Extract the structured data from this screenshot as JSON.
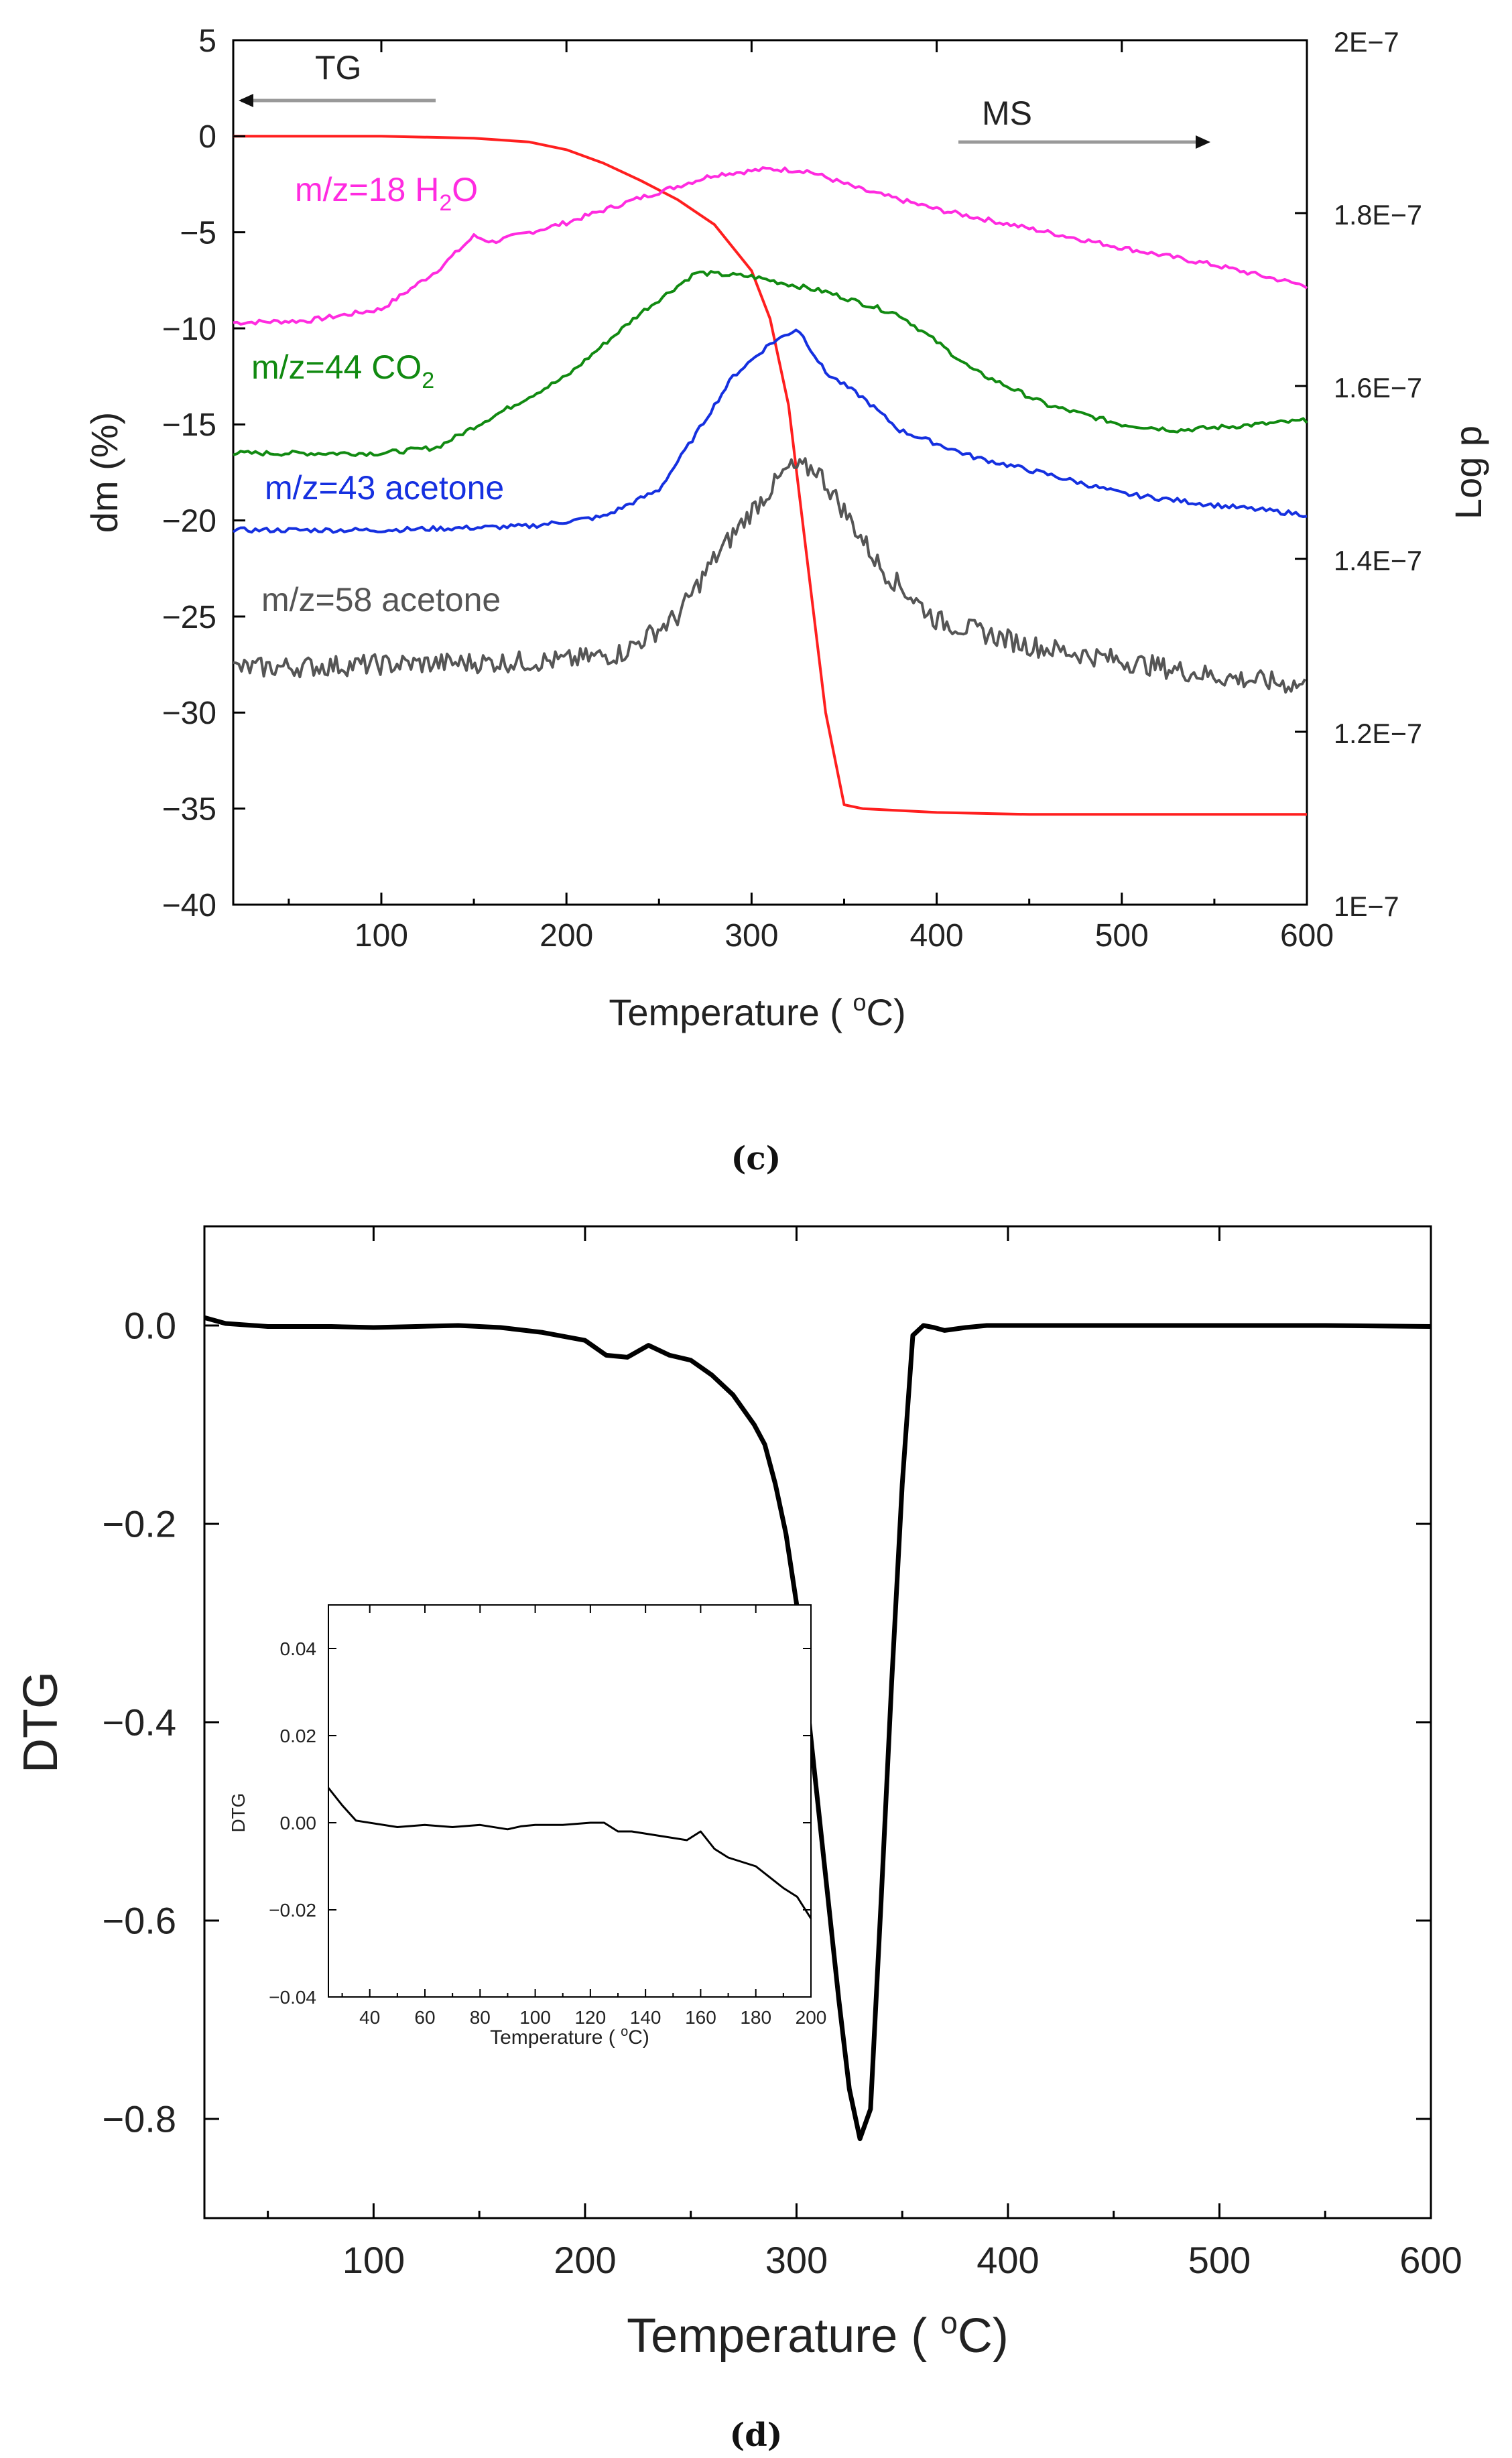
{
  "chart_data": [
    {
      "panel": "c",
      "type": "line",
      "xlabel": "Temperature ( ",
      "xlabel_sup": "o",
      "xlabel_end": "C)",
      "ylabel_left": "dm (%)",
      "ylabel_right": "Log p",
      "xlim": [
        20,
        600
      ],
      "ylim_left": [
        -40,
        5
      ],
      "ylim_right_labels": [
        "2E−7",
        "1.8E−7",
        "1.6E−7",
        "1.4E−7",
        "1.2E−7",
        "1E−7"
      ],
      "x_ticks": [
        "100",
        "200",
        "300",
        "400",
        "500",
        "600"
      ],
      "y_ticks_left": [
        "5",
        "0",
        "−5",
        "−10",
        "−15",
        "−20",
        "−25",
        "−30",
        "−35",
        "−40"
      ],
      "annotations": {
        "tg": "TG",
        "ms": "MS"
      },
      "series": [
        {
          "name": "TG",
          "color": "#ff1f1f",
          "x": [
            20,
            100,
            150,
            180,
            200,
            220,
            240,
            260,
            280,
            300,
            310,
            320,
            330,
            340,
            350,
            360,
            400,
            450,
            500,
            550,
            600
          ],
          "y": [
            0,
            0,
            -0.1,
            -0.3,
            -0.7,
            -1.4,
            -2.3,
            -3.3,
            -4.6,
            -7,
            -9.5,
            -14,
            -22,
            -30,
            -34.8,
            -35,
            -35.2,
            -35.3,
            -35.3,
            -35.3,
            -35.3
          ]
        },
        {
          "name": "m/z=18 H2O",
          "label_main": "m/z=18 H",
          "label_sub": "2",
          "label_end": "O",
          "color": "#ff2be0",
          "x": [
            20,
            60,
            100,
            130,
            150,
            160,
            180,
            200,
            240,
            280,
            310,
            330,
            360,
            400,
            450,
            500,
            550,
            600
          ],
          "y": [
            -9.7,
            -9.6,
            -9,
            -7,
            -5.2,
            -5.5,
            -5,
            -4.5,
            -3.2,
            -2,
            -1.7,
            -1.8,
            -2.8,
            -3.8,
            -4.8,
            -5.8,
            -6.7,
            -7.8
          ]
        },
        {
          "name": "m/z=44 CO2",
          "label_main": "m/z=44 CO",
          "label_sub": "2",
          "label_end": "",
          "color": "#118a11",
          "x": [
            20,
            100,
            130,
            160,
            200,
            240,
            270,
            300,
            340,
            380,
            400,
            420,
            460,
            500,
            530,
            560,
            600
          ],
          "y": [
            -16.5,
            -16.5,
            -16.2,
            -14.6,
            -12.5,
            -9.2,
            -7.1,
            -7.3,
            -8.1,
            -9.3,
            -10.7,
            -12.2,
            -14,
            -15,
            -15.3,
            -15.1,
            -14.8
          ]
        },
        {
          "name": "m/z=43 acetone",
          "label_main": "m/z=43 acetone",
          "label_sub": "",
          "label_end": "",
          "color": "#1530e0",
          "x": [
            20,
            100,
            180,
            220,
            250,
            270,
            290,
            310,
            325,
            340,
            360,
            380,
            420,
            460,
            500,
            550,
            600
          ],
          "y": [
            -20.5,
            -20.5,
            -20.3,
            -19.8,
            -18.4,
            -15.5,
            -12.5,
            -10.8,
            -10,
            -12.3,
            -13.6,
            -15.3,
            -16.7,
            -17.6,
            -18.6,
            -19.2,
            -19.7
          ]
        },
        {
          "name": "m/z=58 acetone",
          "label_main": "m/z=58 acetone",
          "label_sub": "",
          "label_end": "",
          "color": "#555555",
          "noisy": true,
          "x": [
            20,
            100,
            200,
            230,
            260,
            280,
            300,
            320,
            335,
            350,
            370,
            400,
            450,
            500,
            550,
            600
          ],
          "y": [
            -27.7,
            -27.5,
            -27.3,
            -26.9,
            -25,
            -22,
            -19.5,
            -17.3,
            -17.3,
            -19.5,
            -22.5,
            -25.2,
            -26.5,
            -27.3,
            -28.1,
            -28.6
          ]
        }
      ]
    },
    {
      "panel": "d",
      "type": "line",
      "xlabel": "Temperature ( ",
      "xlabel_sup": "o",
      "xlabel_end": "C)",
      "ylabel": "DTG",
      "xlim": [
        20,
        600
      ],
      "ylim": [
        -0.9,
        0.1
      ],
      "x_ticks": [
        "100",
        "200",
        "300",
        "400",
        "500",
        "600"
      ],
      "y_ticks": [
        "0.0",
        "−0.2",
        "−0.4",
        "−0.6",
        "−0.8"
      ],
      "series": [
        {
          "name": "DTG",
          "color": "#000000",
          "x": [
            20,
            30,
            50,
            80,
            100,
            120,
            140,
            160,
            180,
            200,
            210,
            220,
            230,
            240,
            250,
            260,
            270,
            280,
            285,
            290,
            295,
            300,
            305,
            310,
            315,
            320,
            325,
            330,
            335,
            340,
            345,
            350,
            355,
            360,
            365,
            370,
            380,
            390,
            400,
            450,
            500,
            550,
            600
          ],
          "y": [
            0.008,
            0.002,
            -0.001,
            -0.001,
            -0.002,
            -0.001,
            0,
            -0.002,
            -0.007,
            -0.015,
            -0.03,
            -0.032,
            -0.02,
            -0.03,
            -0.035,
            -0.05,
            -0.07,
            -0.1,
            -0.12,
            -0.16,
            -0.21,
            -0.28,
            -0.38,
            -0.48,
            -0.58,
            -0.68,
            -0.77,
            -0.82,
            -0.79,
            -0.58,
            -0.36,
            -0.16,
            -0.01,
            0,
            -0.002,
            -0.005,
            -0.002,
            0,
            0,
            0,
            0,
            0,
            -0.001
          ]
        }
      ]
    },
    {
      "panel": "d-inset",
      "type": "line",
      "xlabel": "Temperature ( ",
      "xlabel_sup": "o",
      "xlabel_end": "C)",
      "ylabel": "DTG",
      "xlim": [
        25,
        200
      ],
      "ylim": [
        -0.04,
        0.05
      ],
      "x_ticks": [
        "40",
        "60",
        "80",
        "100",
        "120",
        "140",
        "160",
        "180",
        "200"
      ],
      "y_ticks": [
        "0.04",
        "0.02",
        "0.00",
        "−0.02",
        "−0.04"
      ],
      "series": [
        {
          "name": "DTG inset",
          "color": "#000000",
          "x": [
            25,
            30,
            35,
            50,
            60,
            70,
            80,
            90,
            95,
            100,
            110,
            120,
            125,
            130,
            135,
            145,
            155,
            160,
            165,
            170,
            180,
            190,
            195,
            200
          ],
          "y": [
            0.008,
            0.004,
            0.0005,
            -0.001,
            -0.0005,
            -0.001,
            -0.0005,
            -0.0015,
            -0.0008,
            -0.0005,
            -0.0005,
            0,
            0,
            -0.002,
            -0.002,
            -0.003,
            -0.004,
            -0.002,
            -0.006,
            -0.008,
            -0.01,
            -0.015,
            -0.017,
            -0.022
          ]
        }
      ]
    }
  ],
  "panel_labels": {
    "c": "c",
    "d": "d"
  }
}
